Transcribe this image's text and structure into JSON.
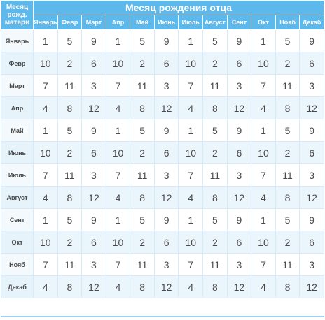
{
  "corner_label": [
    "Месяц",
    "рожд.",
    "матери"
  ],
  "father_header": "Месяц рождения отца",
  "father_months": [
    "Январь",
    "Февр",
    "Март",
    "Апр",
    "Май",
    "Июнь",
    "Июль",
    "Август",
    "Сент",
    "Окт",
    "Нояб",
    "Декаб"
  ],
  "rows": [
    {
      "label": "Январь",
      "values": [
        "1",
        "5",
        "9",
        "1",
        "5",
        "9",
        "1",
        "5",
        "9",
        "1",
        "5",
        "9"
      ]
    },
    {
      "label": "Февр",
      "values": [
        "10",
        "2",
        "6",
        "10",
        "2",
        "6",
        "10",
        "2",
        "6",
        "10",
        "2",
        "6"
      ]
    },
    {
      "label": "Март",
      "values": [
        "7",
        "11",
        "3",
        "7",
        "11",
        "3",
        "7",
        "11",
        "3",
        "7",
        "11",
        "3"
      ]
    },
    {
      "label": "Апр",
      "values": [
        "4",
        "8",
        "12",
        "4",
        "8",
        "12",
        "4",
        "8",
        "12",
        "4",
        "8",
        "12"
      ]
    },
    {
      "label": "Май",
      "values": [
        "1",
        "5",
        "9",
        "1",
        "5",
        "9",
        "1",
        "5",
        "9",
        "1",
        "5",
        "9"
      ]
    },
    {
      "label": "Июнь",
      "values": [
        "10",
        "2",
        "6",
        "10",
        "2",
        "6",
        "10",
        "2",
        "6",
        "10",
        "2",
        "6"
      ]
    },
    {
      "label": "Июль",
      "values": [
        "7",
        "11",
        "3",
        "7",
        "11",
        "3",
        "7",
        "11",
        "3",
        "7",
        "11",
        "3"
      ]
    },
    {
      "label": "Август",
      "values": [
        "4",
        "8",
        "12",
        "4",
        "8",
        "12",
        "4",
        "8",
        "12",
        "4",
        "8",
        "12"
      ]
    },
    {
      "label": "Сент",
      "values": [
        "1",
        "5",
        "9",
        "1",
        "5",
        "9",
        "1",
        "5",
        "9",
        "1",
        "5",
        "9"
      ]
    },
    {
      "label": "Окт",
      "values": [
        "10",
        "2",
        "6",
        "10",
        "2",
        "6",
        "10",
        "2",
        "6",
        "10",
        "2",
        "6"
      ]
    },
    {
      "label": "Нояб",
      "values": [
        "7",
        "11",
        "3",
        "7",
        "11",
        "3",
        "7",
        "11",
        "3",
        "7",
        "11",
        "3"
      ]
    },
    {
      "label": "Декаб",
      "values": [
        "4",
        "8",
        "12",
        "4",
        "8",
        "12",
        "4",
        "8",
        "12",
        "4",
        "8",
        "12"
      ]
    }
  ],
  "colors": {
    "header_bg": "#5db8ec",
    "row_alt_bg": "#eaf5fc",
    "text": "#4a4a4a",
    "border": "#d6ebf7"
  }
}
